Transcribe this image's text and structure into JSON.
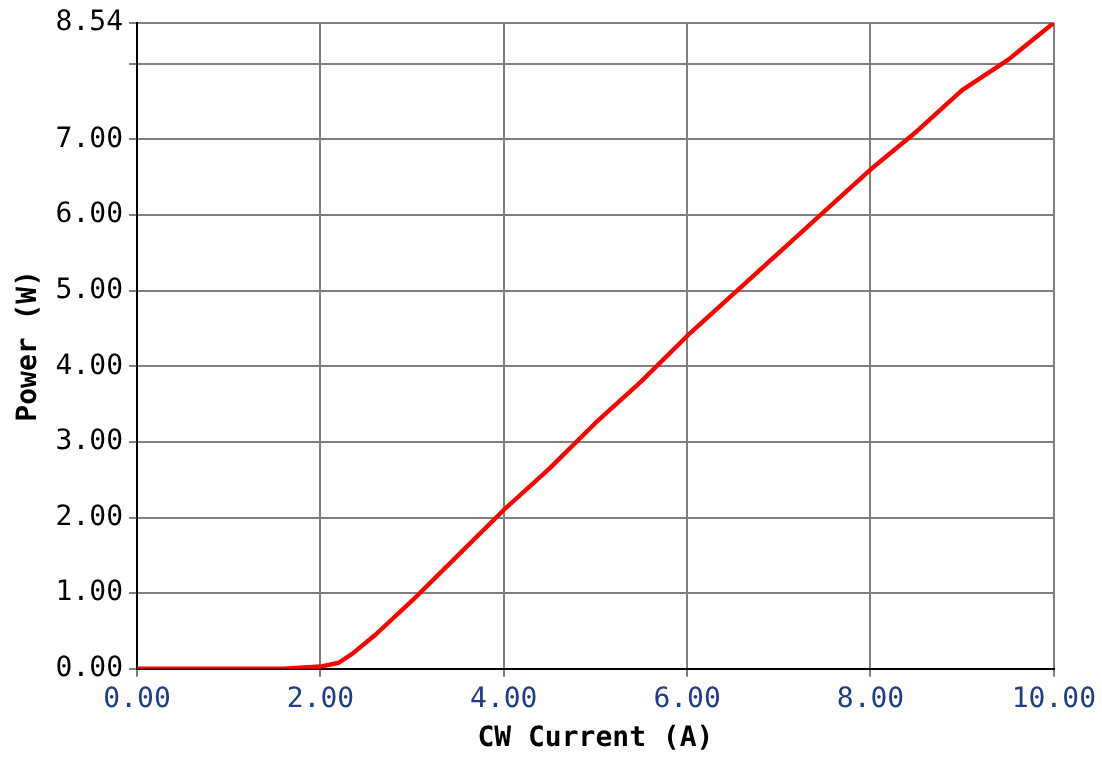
{
  "chart_data": {
    "type": "line",
    "xlabel": "CW Current (A)",
    "ylabel": "Power (W)",
    "x": [
      0,
      0.5,
      1,
      1.6,
      2.0,
      2.2,
      2.35,
      2.6,
      3,
      3.5,
      4,
      4.5,
      5,
      5.5,
      6,
      6.5,
      7,
      7.5,
      8,
      8.5,
      9,
      9.5,
      10
    ],
    "series": [
      {
        "color": "#ff0000",
        "values": [
          0,
          0,
          0,
          0,
          0.03,
          0.08,
          0.2,
          0.45,
          0.9,
          1.5,
          2.1,
          2.65,
          3.25,
          3.8,
          4.4,
          4.95,
          5.5,
          6.05,
          6.6,
          7.1,
          7.65,
          8.05,
          8.54
        ]
      }
    ],
    "xlim": [
      0,
      10
    ],
    "ylim": [
      0,
      8.54
    ],
    "xticks": [
      {
        "value": 0,
        "label": "0.00"
      },
      {
        "value": 2,
        "label": "2.00"
      },
      {
        "value": 4,
        "label": "4.00"
      },
      {
        "value": 6,
        "label": "6.00"
      },
      {
        "value": 8,
        "label": "8.00"
      },
      {
        "value": 10,
        "label": "10.00"
      }
    ],
    "yticks": [
      {
        "value": 0,
        "label": "0.00"
      },
      {
        "value": 1,
        "label": "1.00"
      },
      {
        "value": 2,
        "label": "2.00"
      },
      {
        "value": 3,
        "label": "3.00"
      },
      {
        "value": 4,
        "label": "4.00"
      },
      {
        "value": 5,
        "label": "5.00"
      },
      {
        "value": 6,
        "label": "6.00"
      },
      {
        "value": 7,
        "label": "7.00"
      },
      {
        "value": 8,
        "label": null
      },
      {
        "value": 8.54,
        "label": "8.54"
      }
    ],
    "grid": true,
    "legend": false,
    "marker": "none",
    "line_style": "solid"
  }
}
